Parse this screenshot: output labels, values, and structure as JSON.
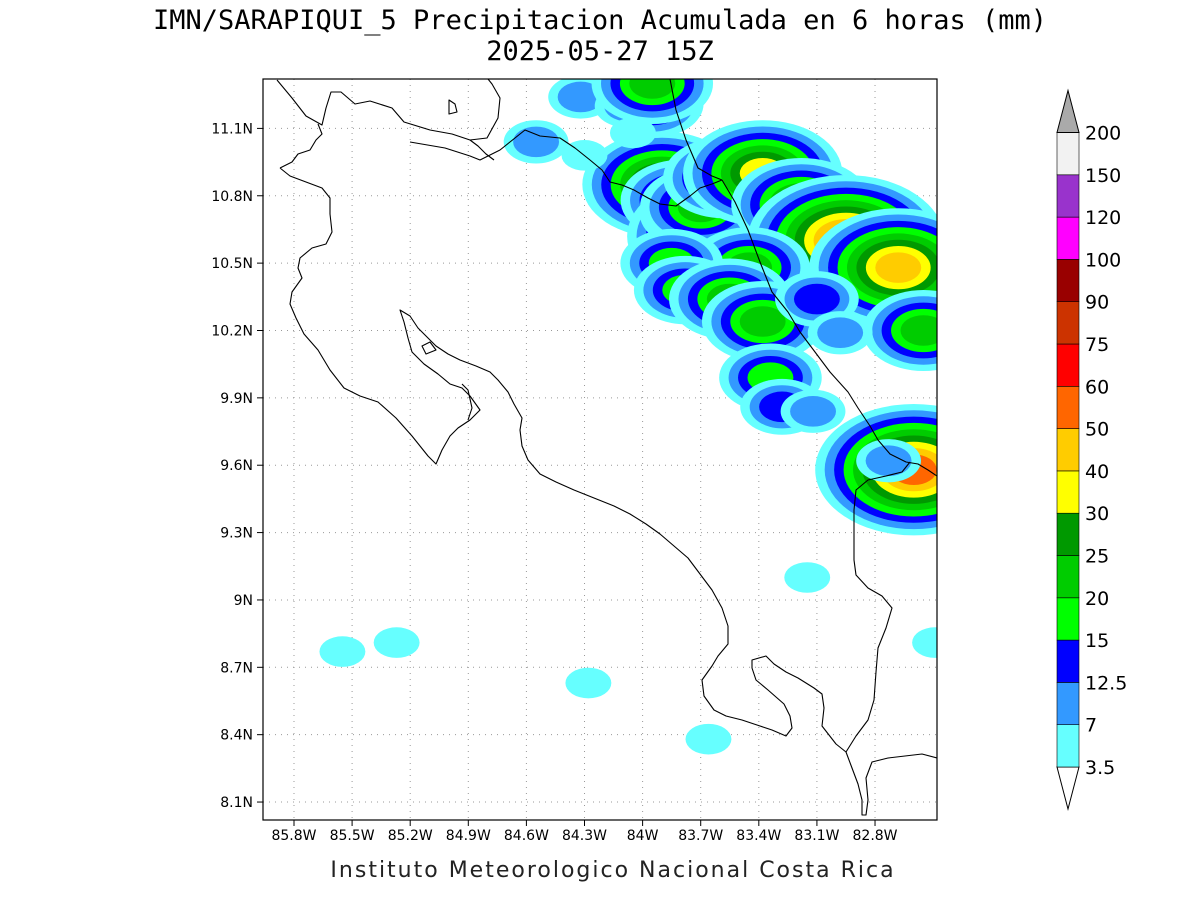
{
  "header": {
    "title": "IMN/SARAPIQUI_5 Precipitacion Acumulada en 6 horas (mm)",
    "subtitle": "2025-05-27 15Z"
  },
  "footer": {
    "credit": "Instituto Meteorologico Nacional Costa Rica"
  },
  "map": {
    "lon_range": [
      -85.96,
      -82.48
    ],
    "lat_range": [
      8.02,
      11.32
    ],
    "lon_ticks": [
      "85.8W",
      "85.5W",
      "85.2W",
      "84.9W",
      "84.6W",
      "84.3W",
      "84W",
      "83.7W",
      "83.4W",
      "83.1W",
      "82.8W"
    ],
    "lat_ticks": [
      "11.1N",
      "10.8N",
      "10.5N",
      "10.2N",
      "9.9N",
      "9.6N",
      "9.3N",
      "9N",
      "8.7N",
      "8.4N",
      "8.1N"
    ]
  },
  "colorbar": {
    "labels": [
      "3.5",
      "7",
      "12.5",
      "15",
      "20",
      "25",
      "30",
      "40",
      "50",
      "60",
      "75",
      "90",
      "100",
      "120",
      "150",
      "200"
    ],
    "colors": [
      "#66ffff",
      "#3399ff",
      "#0000ff",
      "#00ff00",
      "#00cc00",
      "#009900",
      "#ffff00",
      "#ffcc00",
      "#ff6600",
      "#ff0000",
      "#cc3300",
      "#990000",
      "#ff00ff",
      "#9933cc",
      "#f2f2f2",
      "#aaaaaa"
    ]
  },
  "chart_data": {
    "type": "heatmap",
    "title": "IMN/SARAPIQUI_5 Precipitacion Acumulada en 6 horas (mm)",
    "subtitle": "2025-05-27 15Z",
    "variable": "Precipitacion Acumulada en 6 horas (mm)",
    "xlabel": "",
    "ylabel": "",
    "xlim": [
      -85.96,
      -82.48
    ],
    "ylim": [
      8.02,
      11.32
    ],
    "levels": [
      3.5,
      7,
      12.5,
      15,
      20,
      25,
      30,
      40,
      50,
      60,
      75,
      90,
      100,
      120,
      150,
      200
    ],
    "cells": [
      {
        "lon": -83.9,
        "lat": 10.85,
        "value": 35
      },
      {
        "lon": -83.8,
        "lat": 10.78,
        "value": 22
      },
      {
        "lon": -83.62,
        "lat": 10.62,
        "value": 45
      },
      {
        "lon": -83.55,
        "lat": 10.58,
        "value": 22
      },
      {
        "lon": -83.75,
        "lat": 10.72,
        "value": 15
      },
      {
        "lon": -83.7,
        "lat": 10.75,
        "value": 20
      },
      {
        "lon": -83.58,
        "lat": 10.88,
        "value": 20
      },
      {
        "lon": -83.38,
        "lat": 10.9,
        "value": 32
      },
      {
        "lon": -83.18,
        "lat": 10.76,
        "value": 28
      },
      {
        "lon": -82.95,
        "lat": 10.6,
        "value": 55
      },
      {
        "lon": -82.68,
        "lat": 10.48,
        "value": 45
      },
      {
        "lon": -82.55,
        "lat": 10.2,
        "value": 20
      },
      {
        "lon": -83.45,
        "lat": 10.48,
        "value": 22
      },
      {
        "lon": -83.85,
        "lat": 10.5,
        "value": 15
      },
      {
        "lon": -83.78,
        "lat": 10.38,
        "value": 18
      },
      {
        "lon": -83.55,
        "lat": 10.34,
        "value": 20
      },
      {
        "lon": -83.38,
        "lat": 10.24,
        "value": 22
      },
      {
        "lon": -83.1,
        "lat": 10.34,
        "value": 12.5
      },
      {
        "lon": -82.98,
        "lat": 10.19,
        "value": 7
      },
      {
        "lon": -83.34,
        "lat": 9.99,
        "value": 15
      },
      {
        "lon": -83.28,
        "lat": 9.86,
        "value": 12.5
      },
      {
        "lon": -83.12,
        "lat": 9.84,
        "value": 7
      },
      {
        "lon": -82.6,
        "lat": 9.58,
        "value": 55
      },
      {
        "lon": -82.73,
        "lat": 9.62,
        "value": 7
      },
      {
        "lon": -83.95,
        "lat": 11.21,
        "value": 15
      },
      {
        "lon": -84.32,
        "lat": 11.24,
        "value": 7
      },
      {
        "lon": -84.08,
        "lat": 11.2,
        "value": 7
      },
      {
        "lon": -83.95,
        "lat": 11.3,
        "value": 20
      },
      {
        "lon": -84.55,
        "lat": 11.04,
        "value": 7
      },
      {
        "lon": -84.3,
        "lat": 10.98,
        "value": 3.5
      },
      {
        "lon": -84.05,
        "lat": 11.08,
        "value": 3.5
      },
      {
        "lon": -85.27,
        "lat": 8.81,
        "value": 3.5
      },
      {
        "lon": -85.55,
        "lat": 8.77,
        "value": 3.5
      },
      {
        "lon": -84.28,
        "lat": 8.63,
        "value": 3.5
      },
      {
        "lon": -83.66,
        "lat": 8.38,
        "value": 3.5
      },
      {
        "lon": -82.49,
        "lat": 8.81,
        "value": 3.5
      },
      {
        "lon": -83.15,
        "lat": 9.1,
        "value": 3.5
      }
    ]
  }
}
